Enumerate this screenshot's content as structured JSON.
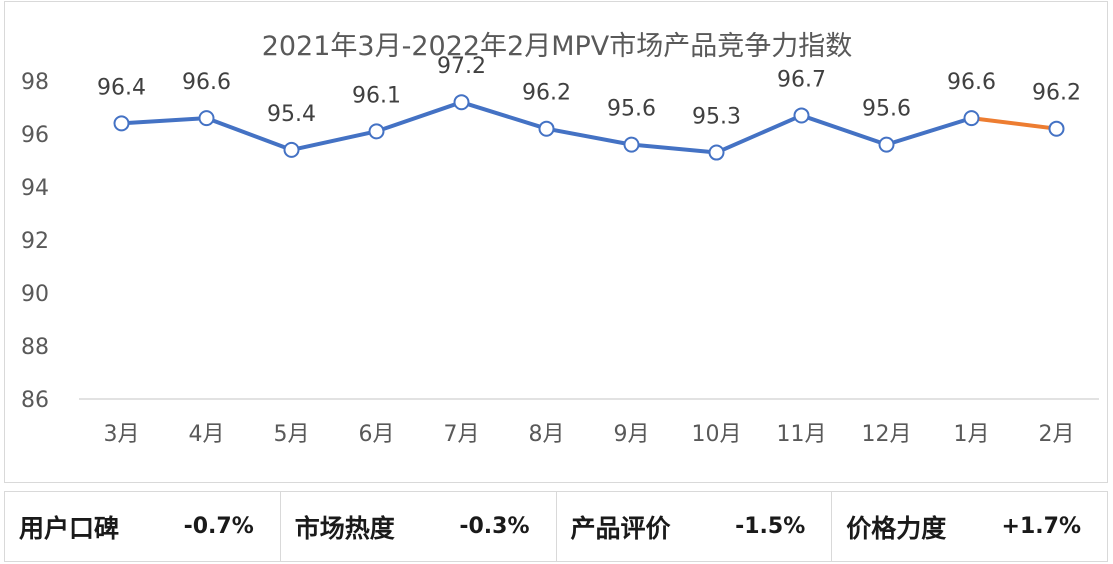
{
  "chart_data": {
    "type": "line",
    "title": "2021年3月-2022年2月MPV市场产品竞争力指数",
    "categories": [
      "3月",
      "4月",
      "5月",
      "6月",
      "7月",
      "8月",
      "9月",
      "10月",
      "11月",
      "12月",
      "1月",
      "2月"
    ],
    "series": [
      {
        "values": [
          96.4,
          96.6,
          95.4,
          96.1,
          97.2,
          96.2,
          95.6,
          95.3,
          96.7,
          95.6,
          96.6,
          96.2
        ]
      }
    ],
    "ylim": [
      86,
      98
    ],
    "yticks": [
      86,
      88,
      90,
      92,
      94,
      96,
      98
    ],
    "line_color": "#4472c4",
    "last_segment_color": "#ed7d31",
    "drop_line_color": "#bdd7ee",
    "grid": false
  },
  "summary": [
    {
      "label": "用户口碑",
      "value": "-0.7%"
    },
    {
      "label": "市场热度",
      "value": "-0.3%"
    },
    {
      "label": "产品评价",
      "value": "-1.5%"
    },
    {
      "label": "价格力度",
      "value": "+1.7%"
    }
  ]
}
